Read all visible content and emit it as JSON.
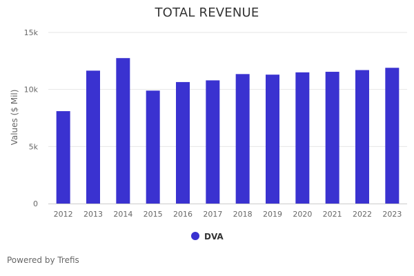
{
  "credit": "Powered by Trefis",
  "chart_data": {
    "type": "bar",
    "title": "TOTAL REVENUE",
    "xlabel": "",
    "ylabel": "Values ($ Mil)",
    "ylim": [
      0,
      15000
    ],
    "yticks": [
      0,
      5000,
      10000,
      15000
    ],
    "ytick_labels": [
      "0",
      "5k",
      "10k",
      "15k"
    ],
    "grid": true,
    "legend_position": "bottom",
    "categories": [
      "2012",
      "2013",
      "2014",
      "2015",
      "2016",
      "2017",
      "2018",
      "2019",
      "2020",
      "2021",
      "2022",
      "2023"
    ],
    "series": [
      {
        "name": "DVA",
        "color": "#3a32d0",
        "values": [
          8100,
          11650,
          12750,
          9900,
          10650,
          10800,
          11350,
          11300,
          11500,
          11550,
          11700,
          11900
        ]
      }
    ]
  }
}
